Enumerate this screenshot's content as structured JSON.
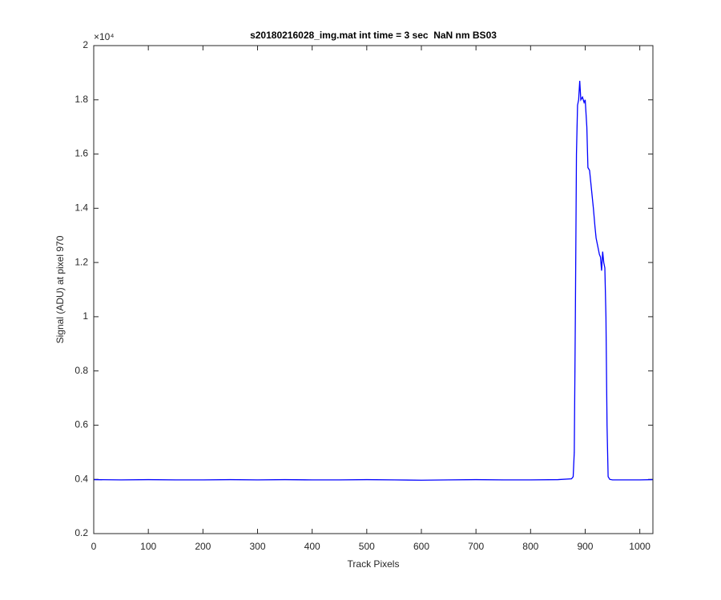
{
  "chart_data": {
    "type": "line",
    "title": "s20180216028_img.mat int time = 3 sec  NaN nm BS03",
    "x_label": "Track Pixels",
    "y_label": "Signal (ADU) at pixel 970",
    "y_exponent_label": "×10⁴",
    "color": "#0000ff",
    "xlim": [
      0,
      1024
    ],
    "ylim": [
      0.2,
      2
    ],
    "xticks": [
      0,
      100,
      200,
      300,
      400,
      500,
      600,
      700,
      800,
      900,
      1000
    ],
    "yticks": [
      0.2,
      0.4,
      0.6,
      0.8,
      1,
      1.2,
      1.4,
      1.6,
      1.8,
      2
    ],
    "x": [
      0,
      50,
      100,
      150,
      200,
      250,
      300,
      350,
      400,
      450,
      500,
      550,
      600,
      650,
      700,
      750,
      800,
      850,
      875,
      878,
      880,
      882,
      884,
      886,
      888,
      890,
      892,
      895,
      898,
      900,
      903,
      905,
      908,
      910,
      912,
      915,
      918,
      920,
      923,
      926,
      928,
      930,
      932,
      934,
      936,
      938,
      940,
      942,
      945,
      950,
      1000,
      1024
    ],
    "values": [
      0.399,
      0.398,
      0.399,
      0.398,
      0.398,
      0.399,
      0.398,
      0.399,
      0.398,
      0.398,
      0.399,
      0.398,
      0.397,
      0.398,
      0.399,
      0.398,
      0.398,
      0.399,
      0.402,
      0.41,
      0.5,
      1.0,
      1.6,
      1.78,
      1.8,
      1.87,
      1.8,
      1.81,
      1.79,
      1.8,
      1.7,
      1.55,
      1.54,
      1.5,
      1.46,
      1.4,
      1.33,
      1.29,
      1.26,
      1.23,
      1.22,
      1.17,
      1.24,
      1.2,
      1.18,
      1.0,
      0.6,
      0.41,
      0.4,
      0.398,
      0.398,
      0.399
    ]
  }
}
